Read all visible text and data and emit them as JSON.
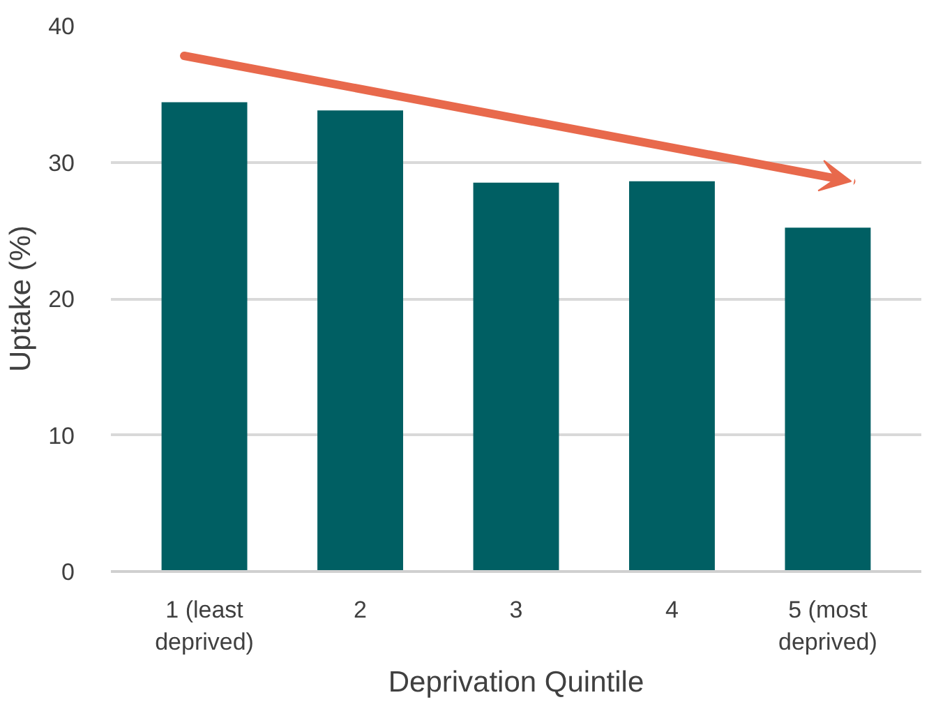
{
  "chart_data": {
    "type": "bar",
    "xlabel": "Deprivation Quintile",
    "ylabel": "Uptake (%)",
    "categories": [
      "1 (least deprived)",
      "2",
      "3",
      "4",
      "5 (most deprived)"
    ],
    "values": [
      34.4,
      33.8,
      28.5,
      28.6,
      25.2
    ],
    "color": "#005f63",
    "ylim": [
      0,
      40
    ],
    "yticks": [
      0,
      10,
      20,
      30,
      40
    ],
    "grid": "y"
  }
}
